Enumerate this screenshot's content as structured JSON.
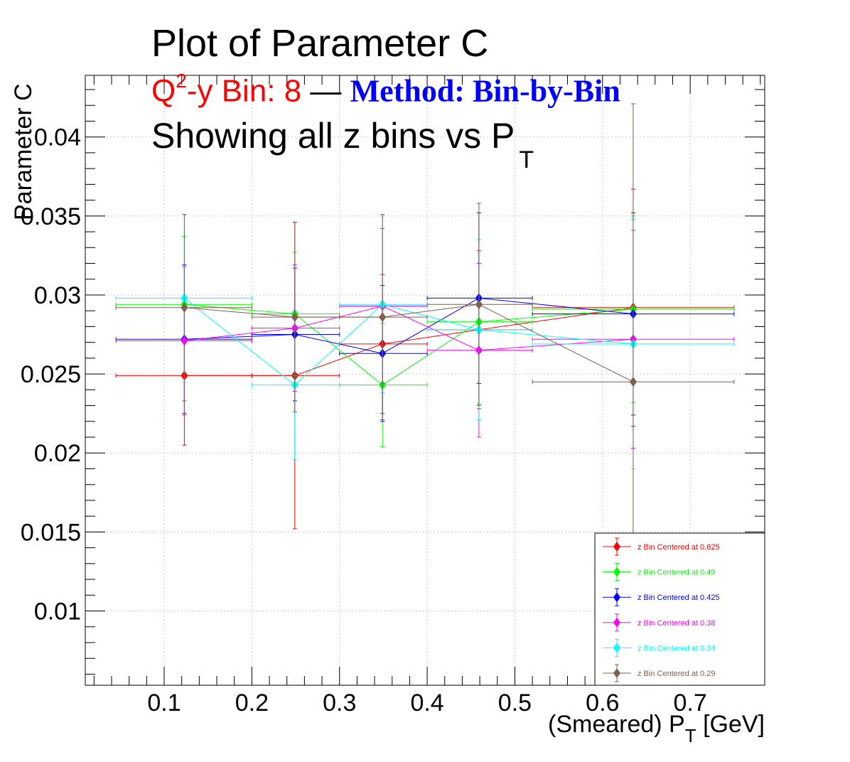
{
  "header": {
    "title": "Plot of Parameter C",
    "subtitle_bin_prefix": "Q",
    "subtitle_bin_sup": "2",
    "subtitle_bin_rest": "-y Bin: 8",
    "subtitle_dash": " — ",
    "subtitle_method": "Method: Bin-by-Bin",
    "subtitle2_main": "Showing all z bins vs P",
    "subtitle2_sub": "T"
  },
  "chart_data": {
    "type": "scatter",
    "title": "Plot of Parameter C",
    "ylabel": "Parameter C",
    "xlabel_main": "(Smeared) P",
    "xlabel_sub": "T",
    "xlabel_unit": " [GeV]",
    "xlim": [
      0.01,
      0.785
    ],
    "ylim": [
      0.0053,
      0.0439
    ],
    "x_ticks": [
      0.1,
      0.2,
      0.3,
      0.4,
      0.5,
      0.6,
      0.7
    ],
    "x_tick_labels": [
      "0.1",
      "0.2",
      "0.3",
      "0.4",
      "0.5",
      "0.6",
      "0.7"
    ],
    "y_ticks": [
      0.01,
      0.015,
      0.02,
      0.025,
      0.03,
      0.035,
      0.04
    ],
    "y_tick_labels": [
      "0.01",
      "0.015",
      "0.02",
      "0.025",
      "0.03",
      "0.035",
      "0.04"
    ],
    "grid": true,
    "legend_position": "bottom-right",
    "series": [
      {
        "name": "z Bin Centered at 0.625",
        "color": "#ff0000",
        "points": [
          {
            "x": 0.123,
            "xlo": 0.045,
            "xhi": 0.2,
            "y": 0.0249,
            "ey": 0.0044
          },
          {
            "x": 0.249,
            "xlo": 0.2,
            "xhi": 0.3,
            "y": 0.0249,
            "ey": 0.0097
          },
          {
            "x": 0.349,
            "xlo": 0.3,
            "xhi": 0.4,
            "y": 0.0269,
            "ey": 0.0044
          },
          {
            "x": 0.459,
            "xlo": 0.4,
            "xhi": 0.52,
            "y": 0.0278,
            "ey": 0.005
          },
          {
            "x": 0.635,
            "xlo": 0.52,
            "xhi": 0.75,
            "y": 0.0292,
            "ey": 0.0075
          }
        ]
      },
      {
        "name": "z Bin Centered at 0.49",
        "color": "#00ff00",
        "points": [
          {
            "x": 0.123,
            "xlo": 0.045,
            "xhi": 0.2,
            "y": 0.0294,
            "ey": 0.0043
          },
          {
            "x": 0.249,
            "xlo": 0.2,
            "xhi": 0.3,
            "y": 0.0288,
            "ey": 0.0039
          },
          {
            "x": 0.349,
            "xlo": 0.3,
            "xhi": 0.4,
            "y": 0.0243,
            "ey": 0.0039
          },
          {
            "x": 0.459,
            "xlo": 0.4,
            "xhi": 0.52,
            "y": 0.0283,
            "ey": 0.0052
          },
          {
            "x": 0.635,
            "xlo": 0.52,
            "xhi": 0.75,
            "y": 0.0291,
            "ey": 0.0059
          }
        ]
      },
      {
        "name": "z Bin Centered at 0.425",
        "color": "#0000ff",
        "points": [
          {
            "x": 0.123,
            "xlo": 0.045,
            "xhi": 0.2,
            "y": 0.0272,
            "ey": 0.0047
          },
          {
            "x": 0.249,
            "xlo": 0.2,
            "xhi": 0.3,
            "y": 0.0275,
            "ey": 0.0042
          },
          {
            "x": 0.349,
            "xlo": 0.3,
            "xhi": 0.4,
            "y": 0.0263,
            "ey": 0.0043
          },
          {
            "x": 0.459,
            "xlo": 0.4,
            "xhi": 0.52,
            "y": 0.0298,
            "ey": 0.0054
          },
          {
            "x": 0.635,
            "xlo": 0.52,
            "xhi": 0.75,
            "y": 0.0288,
            "ey": 0.0064
          }
        ]
      },
      {
        "name": "z Bin Centered at 0.38",
        "color": "#ff00ff",
        "points": [
          {
            "x": 0.123,
            "xlo": 0.045,
            "xhi": 0.2,
            "y": 0.0271,
            "ey": 0.0047
          },
          {
            "x": 0.249,
            "xlo": 0.2,
            "xhi": 0.3,
            "y": 0.0279,
            "ey": 0.004
          },
          {
            "x": 0.349,
            "xlo": 0.3,
            "xhi": 0.4,
            "y": 0.0293,
            "ey": 0.0049
          },
          {
            "x": 0.459,
            "xlo": 0.4,
            "xhi": 0.52,
            "y": 0.0265,
            "ey": 0.0055
          },
          {
            "x": 0.635,
            "xlo": 0.52,
            "xhi": 0.75,
            "y": 0.0272,
            "ey": 0.0069
          }
        ]
      },
      {
        "name": "z Bin Centered at 0.34",
        "color": "#00ffff",
        "points": [
          {
            "x": 0.123,
            "xlo": 0.045,
            "xhi": 0.2,
            "y": 0.0298,
            "ey": 0.0053
          },
          {
            "x": 0.249,
            "xlo": 0.2,
            "xhi": 0.3,
            "y": 0.0243,
            "ey": 0.0047
          },
          {
            "x": 0.349,
            "xlo": 0.3,
            "xhi": 0.4,
            "y": 0.0294,
            "ey": 0.0056
          },
          {
            "x": 0.459,
            "xlo": 0.4,
            "xhi": 0.52,
            "y": 0.0278,
            "ey": 0.0057
          },
          {
            "x": 0.635,
            "xlo": 0.52,
            "xhi": 0.75,
            "y": 0.0269,
            "ey": 0.0079
          }
        ]
      },
      {
        "name": "z Bin Centered at 0.29",
        "color": "#7f5f4f",
        "points": [
          {
            "x": 0.123,
            "xlo": 0.045,
            "xhi": 0.2,
            "y": 0.0292,
            "ey": 0.0059
          },
          {
            "x": 0.249,
            "xlo": 0.2,
            "xhi": 0.3,
            "y": 0.0286,
            "ey": 0.006
          },
          {
            "x": 0.349,
            "xlo": 0.3,
            "xhi": 0.4,
            "y": 0.0286,
            "ey": 0.0065
          },
          {
            "x": 0.459,
            "xlo": 0.4,
            "xhi": 0.52,
            "y": 0.0294,
            "ey": 0.0064
          },
          {
            "x": 0.635,
            "xlo": 0.52,
            "xhi": 0.75,
            "y": 0.0245,
            "ey": 0.0176
          }
        ]
      }
    ]
  }
}
